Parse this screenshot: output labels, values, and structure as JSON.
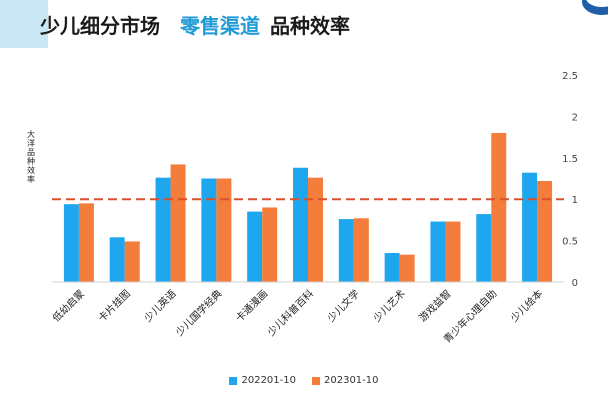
{
  "header": {
    "title_part1": "少儿细分市场",
    "title_accent": "零售渠道",
    "title_part2": "品种效率"
  },
  "colors": {
    "series1": "#1ea7ee",
    "series2": "#f57d3c",
    "reference_line": "#d9502b",
    "title_accent": "#1f9ad6"
  },
  "chart_data": {
    "type": "bar",
    "ylabel": "大洋品种效率",
    "categories": [
      "低幼启蒙",
      "卡片挂图",
      "少儿英语",
      "少儿国学经典",
      "卡通漫画",
      "少儿科普百科",
      "少儿文学",
      "少儿艺术",
      "游戏益智",
      "青少年心理自助",
      "少儿绘本"
    ],
    "series": [
      {
        "name": "202201-10",
        "values": [
          0.94,
          0.54,
          1.26,
          1.25,
          0.85,
          1.38,
          0.76,
          0.35,
          0.73,
          0.82,
          1.32
        ]
      },
      {
        "name": "202301-10",
        "values": [
          0.95,
          0.49,
          1.42,
          1.25,
          0.9,
          1.26,
          0.77,
          0.33,
          0.73,
          1.8,
          1.22
        ]
      }
    ],
    "ylim": [
      0,
      2.5
    ],
    "yticks": [
      "0",
      "0.5",
      "1",
      "1.5",
      "2",
      "2.5"
    ],
    "reference_value": 1.0,
    "grid": false,
    "legend_position": "bottom"
  }
}
